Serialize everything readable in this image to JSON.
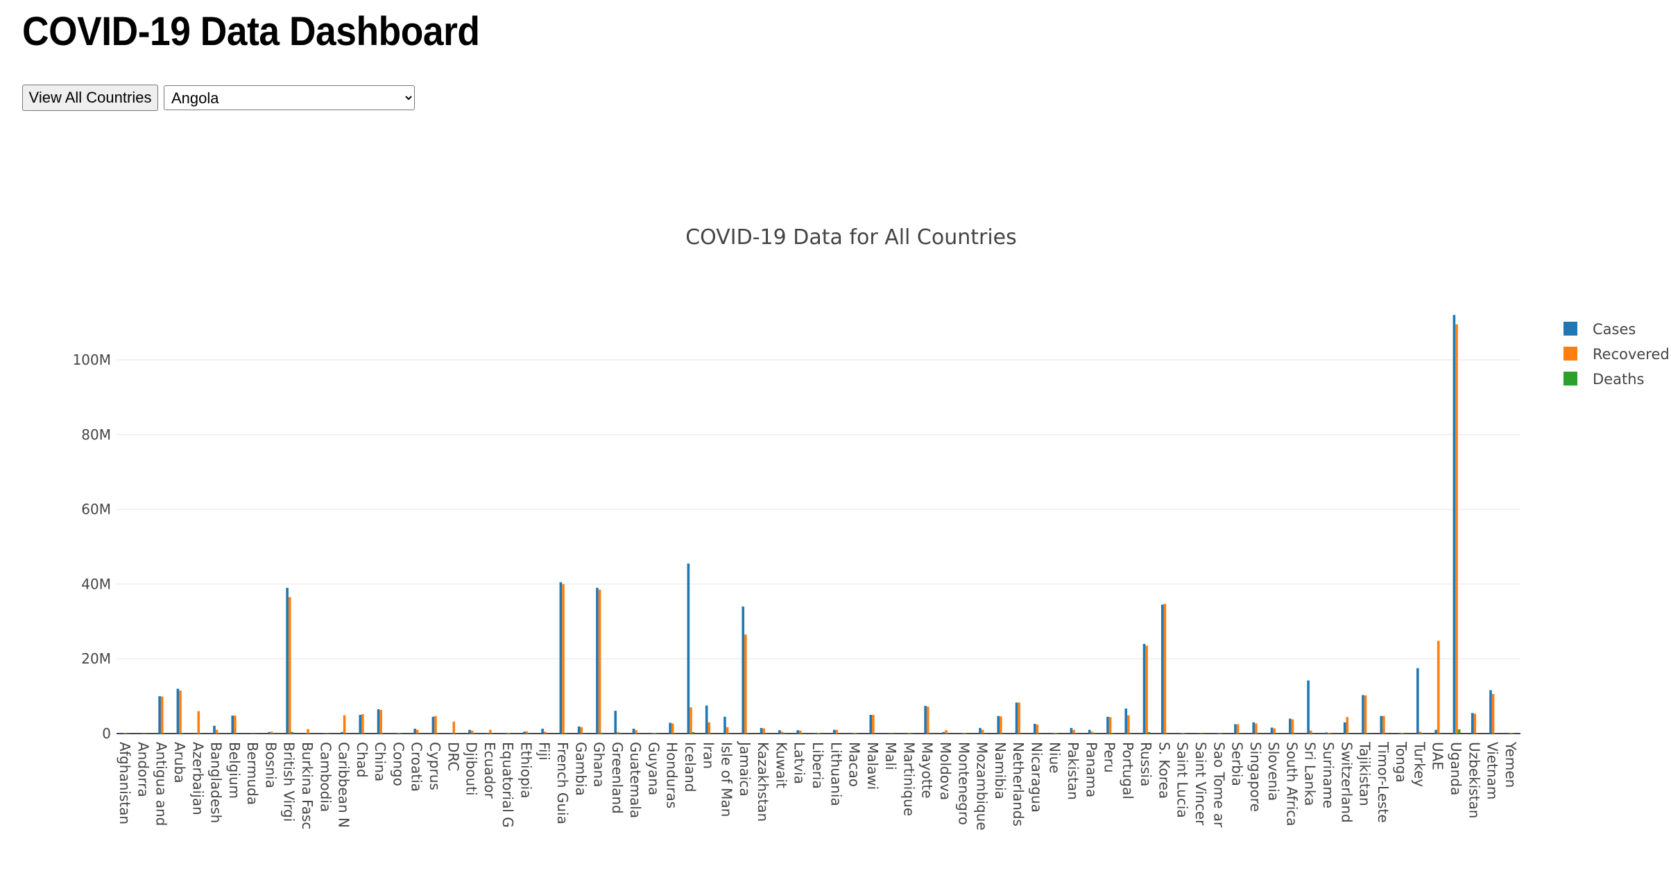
{
  "header": {
    "title": "COVID-19 Data Dashboard",
    "view_all_label": "View All Countries",
    "selected_country": "Angola"
  },
  "chart_data": {
    "type": "bar",
    "title": "COVID-19 Data for All Countries",
    "xlabel": "",
    "ylabel": "",
    "ylim": [
      0,
      110000000
    ],
    "yticks": [
      0,
      20000000,
      40000000,
      60000000,
      80000000,
      100000000
    ],
    "ytick_labels": [
      "0",
      "20M",
      "40M",
      "60M",
      "80M",
      "100M"
    ],
    "legend_position": "top-right",
    "grid": true,
    "colors": {
      "cases": "#1f77b4",
      "recovered": "#ff7f0e",
      "deaths": "#2ca02c"
    },
    "categories": [
      "Afghanistan",
      "Andorra",
      "Antigua and",
      "Aruba",
      "Azerbaijan",
      "Bangladesh",
      "Belgium",
      "Bermuda",
      "Bosnia",
      "British Virgi",
      "Burkina Fasc",
      "Cambodia",
      "Caribbean N",
      "Chad",
      "China",
      "Congo",
      "Croatia",
      "Cyprus",
      "DRC",
      "Djibouti",
      "Ecuador",
      "Equatorial G",
      "Ethiopia",
      "Fiji",
      "French Guia",
      "Gambia",
      "Ghana",
      "Greenland",
      "Guatemala",
      "Guyana",
      "Honduras",
      "Iceland",
      "Iran",
      "Isle of Man",
      "Jamaica",
      "Kazakhstan",
      "Kuwait",
      "Latvia",
      "Liberia",
      "Lithuania",
      "Macao",
      "Malawi",
      "Mali",
      "Martinique",
      "Mayotte",
      "Moldova",
      "Montenegro",
      "Mozambique",
      "Namibia",
      "Netherlands",
      "Nicaragua",
      "Niue",
      "Pakistan",
      "Panama",
      "Peru",
      "Portugal",
      "Russia",
      "S. Korea",
      "Saint Lucia",
      "Saint Vincer",
      "Sao Tome ar",
      "Serbia",
      "Singapore",
      "Slovenia",
      "South Africa",
      "Sri Lanka",
      "Suriname",
      "Switzerland",
      "Tajikistan",
      "Timor-Leste",
      "Tonga",
      "Turkey",
      "UAE",
      "Uganda",
      "Uzbekistan",
      "Vietnam",
      "Yemen"
    ],
    "series": [
      {
        "name": "Cases",
        "values": [
          200000,
          45000,
          10000000,
          12000000,
          200000,
          2100000,
          4800000,
          16000,
          400000,
          39000000,
          100000,
          100000,
          400000,
          5000000,
          6500000,
          200000,
          1300000,
          4500000,
          200000,
          1000000,
          200000,
          200000,
          500000,
          1300000,
          40500000,
          1900000,
          39000000,
          6100000,
          1300000,
          200000,
          2900000,
          45500000,
          7500000,
          4500000,
          34000000,
          1500000,
          900000,
          900000,
          200000,
          1000000,
          200000,
          5000000,
          100000,
          200000,
          7400000,
          400000,
          200000,
          1500000,
          4700000,
          8300000,
          2600000,
          200000,
          1500000,
          1000000,
          4500000,
          6700000,
          24000000,
          34500000,
          200000,
          100000,
          200000,
          2500000,
          3000000,
          1600000,
          4000000,
          14200000,
          300000,
          3000000,
          10300000,
          4700000,
          200000,
          17500000,
          1000000,
          112000000,
          5500000,
          11600000,
          200000
        ]
      },
      {
        "name": "Recovered",
        "values": [
          150000,
          40000,
          9900000,
          11500000,
          6000000,
          1000000,
          4800000,
          14000,
          500000,
          36500000,
          1200000,
          100000,
          4900000,
          5200000,
          6300000,
          150000,
          1000000,
          4700000,
          3200000,
          800000,
          1000000,
          200000,
          600000,
          500000,
          40000000,
          1700000,
          38500000,
          400000,
          900000,
          200000,
          2700000,
          7000000,
          3000000,
          1700000,
          26500000,
          1400000,
          500000,
          800000,
          200000,
          1000000,
          200000,
          5000000,
          100000,
          200000,
          7200000,
          900000,
          200000,
          1000000,
          4600000,
          8300000,
          2400000,
          200000,
          1000000,
          500000,
          4400000,
          4900000,
          23500000,
          34700000,
          200000,
          100000,
          200000,
          2500000,
          2700000,
          1400000,
          3800000,
          800000,
          200000,
          4400000,
          10200000,
          4700000,
          200000,
          500000,
          24800000,
          109500000,
          5300000,
          10600000,
          200000
        ]
      },
      {
        "name": "Deaths",
        "values": [
          20000,
          1000,
          100000,
          150000,
          100000,
          30000,
          30000,
          1000,
          16000,
          400000,
          10000,
          5000,
          20000,
          70000,
          100000,
          5000,
          20000,
          20000,
          20000,
          2000,
          40000,
          2000,
          7000,
          3000,
          200000,
          10000,
          200000,
          20000,
          20000,
          3000,
          100000,
          400000,
          60000,
          30000,
          100000,
          20000,
          3000,
          7000,
          1000,
          10000,
          5000,
          20000,
          3000,
          5000,
          20000,
          20000,
          5000,
          5000,
          15000,
          30000,
          5000,
          1000,
          30000,
          10000,
          200000,
          30000,
          400000,
          30000,
          1000,
          1000,
          1000,
          20000,
          3000,
          7000,
          100000,
          20000,
          1000,
          15000,
          100000,
          1000,
          1000,
          100000,
          3000,
          1100000,
          20000,
          40000,
          2000
        ]
      }
    ]
  }
}
